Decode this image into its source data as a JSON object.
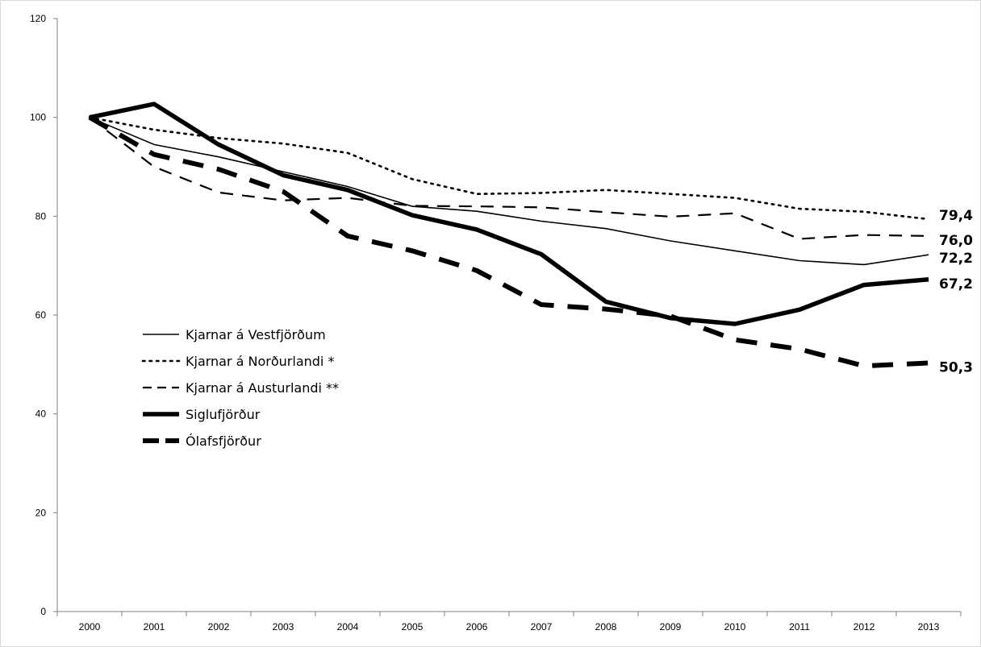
{
  "chart_data": {
    "type": "line",
    "title": "",
    "xlabel": "",
    "ylabel": "",
    "x": [
      "2000",
      "2001",
      "2002",
      "2003",
      "2004",
      "2005",
      "2006",
      "2007",
      "2008",
      "2009",
      "2010",
      "2011",
      "2012",
      "2013"
    ],
    "ylim": [
      0,
      120
    ],
    "yticks": [
      "0",
      "20",
      "40",
      "60",
      "80",
      "100",
      "120"
    ],
    "grid": false,
    "legend_position": "left",
    "series": [
      {
        "name": "Kjarnar á Vestfjörðum",
        "style": "thin-solid",
        "color": "#000000",
        "values": [
          100,
          94.5,
          92,
          89,
          86,
          82,
          81,
          79,
          77.5,
          75,
          73,
          71,
          70.2,
          72.2
        ]
      },
      {
        "name": "Kjarnar á Norðurlandi *",
        "style": "dotted",
        "color": "#000000",
        "values": [
          100,
          97.5,
          95.8,
          94.7,
          92.8,
          87.5,
          84.5,
          84.7,
          85.3,
          84.5,
          83.7,
          81.5,
          80.9,
          79.4
        ]
      },
      {
        "name": "Kjarnar á Austurlandi **",
        "style": "dashed",
        "color": "#000000",
        "values": [
          100,
          90,
          84.8,
          83.2,
          83.7,
          82.1,
          82,
          81.8,
          80.8,
          79.9,
          80.6,
          75.4,
          76.2,
          76.0
        ]
      },
      {
        "name": "Siglufjörður",
        "style": "thick-solid",
        "color": "#000000",
        "values": [
          100,
          102.7,
          94.5,
          88.3,
          85.3,
          80.2,
          77.3,
          72.3,
          62.7,
          59.4,
          58.2,
          61.1,
          66.1,
          67.2
        ]
      },
      {
        "name": "Ólafsfjörður",
        "style": "thick-dashed",
        "color": "#000000",
        "values": [
          100,
          92.5,
          89.5,
          85,
          76,
          73,
          69,
          62.1,
          61.2,
          59.8,
          55,
          53.1,
          49.7,
          50.3
        ]
      }
    ],
    "end_labels": [
      "79,4",
      "76,0",
      "72,2",
      "67,2",
      "50,3"
    ]
  }
}
